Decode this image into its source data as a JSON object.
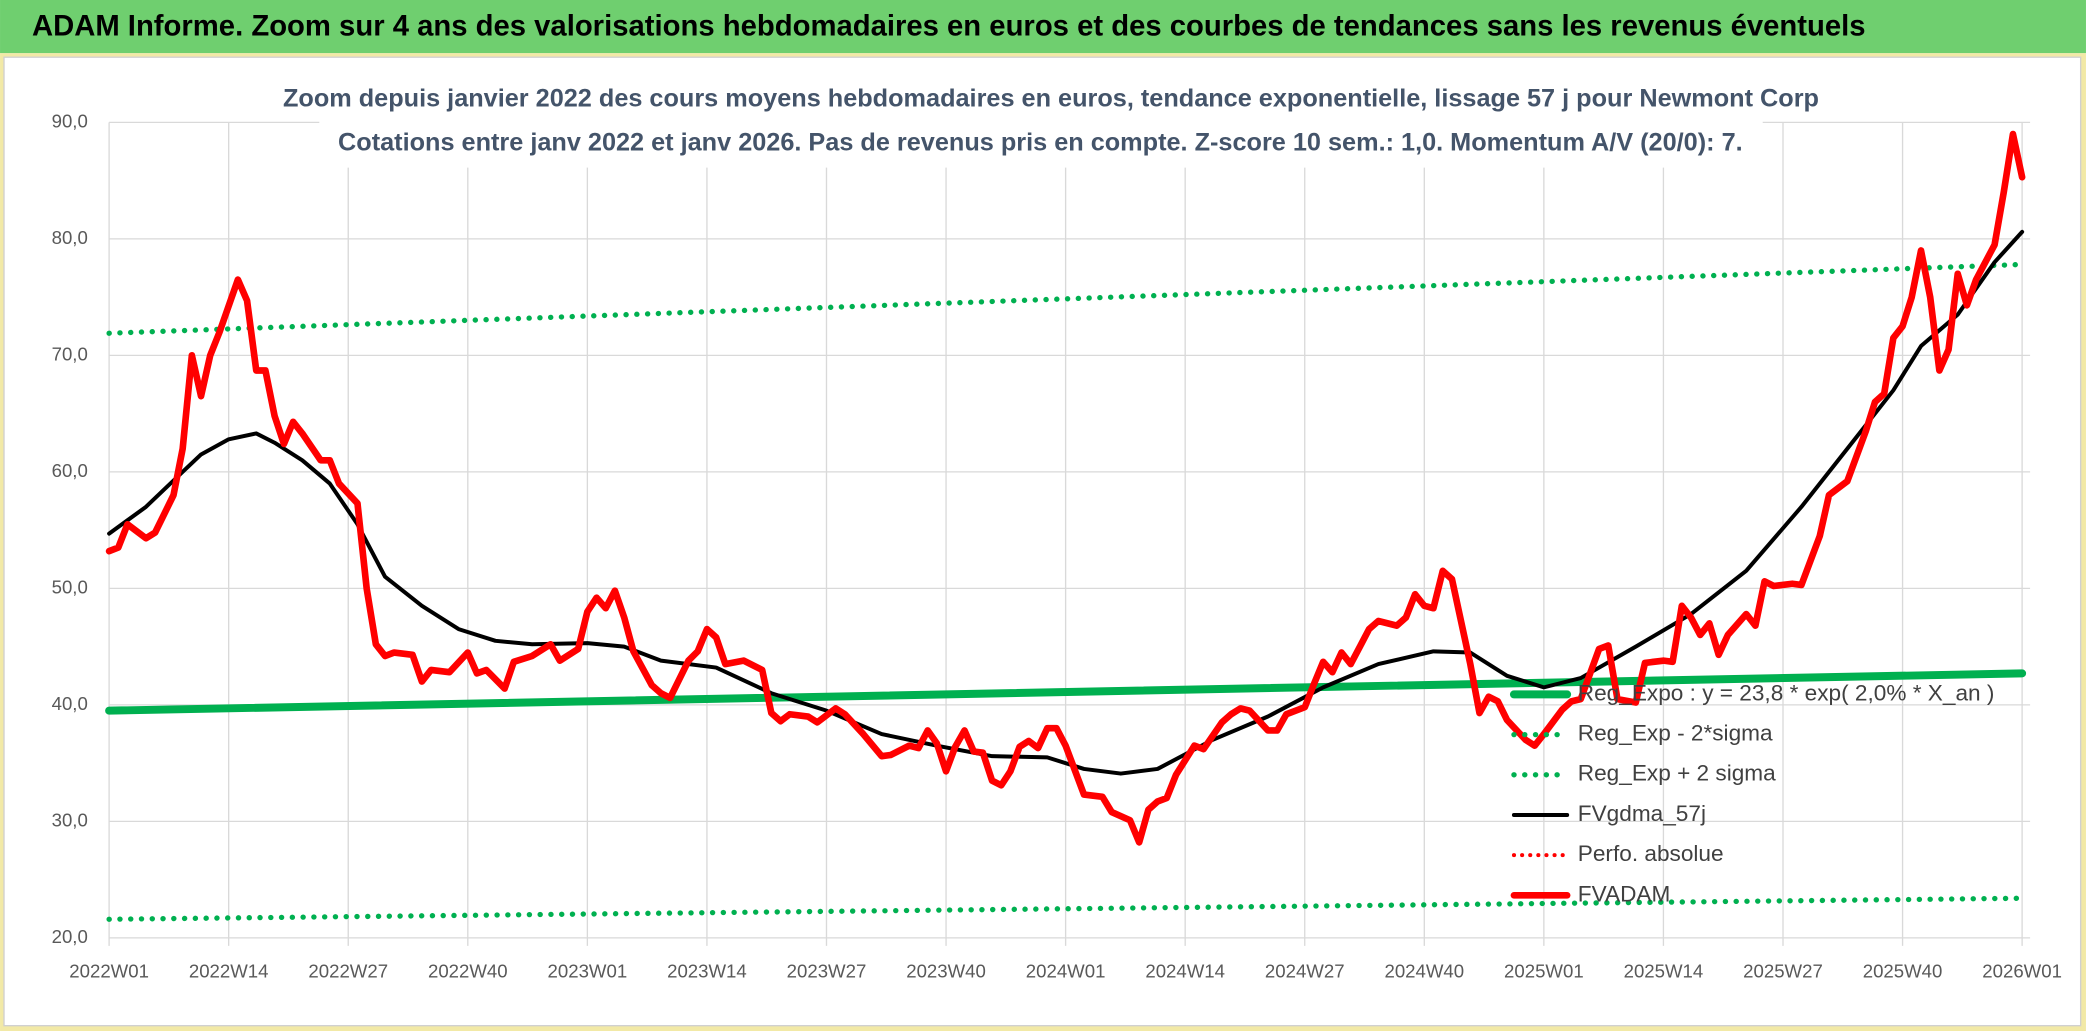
{
  "header": {
    "title": "ADAM Informe. Zoom sur 4 ans des valorisations hebdomadaires en euros et des courbes de tendances sans les revenus éventuels"
  },
  "chart_data": {
    "type": "line",
    "title": "Zoom depuis janvier 2022 des cours moyens hebdomadaires en euros, tendance exponentielle, lissage 57 j pour Newmont Corp",
    "subtitle": "Cotations entre janv 2022 et janv 2026. Pas de revenus pris en compte. Z-score 10 sem.: 1,0. Momentum A/V (20/0): 7.",
    "xlim": [
      0,
      208
    ],
    "xticks": [
      {
        "value": 0,
        "label": "2022W01"
      },
      {
        "value": 13,
        "label": "2022W14"
      },
      {
        "value": 26,
        "label": "2022W27"
      },
      {
        "value": 39,
        "label": "2022W40"
      },
      {
        "value": 52,
        "label": "2023W01"
      },
      {
        "value": 65,
        "label": "2023W14"
      },
      {
        "value": 78,
        "label": "2023W27"
      },
      {
        "value": 91,
        "label": "2023W40"
      },
      {
        "value": 104,
        "label": "2024W01"
      },
      {
        "value": 117,
        "label": "2024W14"
      },
      {
        "value": 130,
        "label": "2024W27"
      },
      {
        "value": 143,
        "label": "2024W40"
      },
      {
        "value": 156,
        "label": "2025W01"
      },
      {
        "value": 169,
        "label": "2025W14"
      },
      {
        "value": 182,
        "label": "2025W27"
      },
      {
        "value": 195,
        "label": "2025W40"
      },
      {
        "value": 208,
        "label": "2026W01"
      }
    ],
    "ylim": [
      20,
      90
    ],
    "yticks": [
      {
        "value": 20,
        "label": "20,0"
      },
      {
        "value": 30,
        "label": "30,0"
      },
      {
        "value": 40,
        "label": "40,0"
      },
      {
        "value": 50,
        "label": "50,0"
      },
      {
        "value": 60,
        "label": "60,0"
      },
      {
        "value": 70,
        "label": "70,0"
      },
      {
        "value": 80,
        "label": "80,0"
      },
      {
        "value": 90,
        "label": "90,0"
      }
    ],
    "grid": true,
    "legend": "lower right",
    "series": [
      {
        "name": "Reg_Expo : y = 23,8 * exp( 2,0% *  X_an )",
        "color": "#00b050",
        "style": "solid",
        "width": 6,
        "x": [
          0,
          208
        ],
        "values": [
          39.5,
          42.7
        ]
      },
      {
        "name": "Reg_Exp - 2*sigma",
        "color": "#00b050",
        "style": "dotted",
        "width": 4,
        "x": [
          0,
          208
        ],
        "values": [
          21.6,
          23.4
        ]
      },
      {
        "name": "Reg_Exp + 2 sigma",
        "color": "#00b050",
        "style": "dotted",
        "width": 4,
        "x": [
          0,
          208
        ],
        "values": [
          71.9,
          77.8
        ]
      },
      {
        "name": "FVgdma_57j",
        "color": "#000000",
        "style": "solid",
        "width": 3,
        "x": [
          0,
          4,
          8,
          10,
          13,
          16,
          18,
          21,
          24,
          27,
          30,
          34,
          38,
          42,
          46,
          52,
          56,
          60,
          66,
          72,
          78,
          84,
          90,
          96,
          102,
          106,
          110,
          114,
          120,
          126,
          132,
          138,
          144,
          148,
          152,
          156,
          160,
          166,
          172,
          178,
          184,
          190,
          194,
          197,
          201,
          205,
          208
        ],
        "values": [
          54.7,
          57,
          60,
          61.5,
          62.8,
          63.3,
          62.5,
          61,
          59,
          55.5,
          51,
          48.5,
          46.5,
          45.5,
          45.2,
          45.3,
          45,
          43.8,
          43.2,
          41,
          39.5,
          37.5,
          36.5,
          35.6,
          35.5,
          34.5,
          34.1,
          34.5,
          37,
          39,
          41.5,
          43.5,
          44.6,
          44.5,
          42.5,
          41.5,
          42.3,
          45,
          47.8,
          51.5,
          57,
          63,
          67,
          70.8,
          73.5,
          78,
          80.6
        ]
      },
      {
        "name": "Perfo. absolue",
        "color": "#ff0000",
        "style": "dotted",
        "width": 3,
        "x": [],
        "values": []
      },
      {
        "name": "FVADAM",
        "color": "#ff0000",
        "style": "solid",
        "width": 5,
        "x": [
          0,
          1,
          2,
          4,
          5,
          7,
          8,
          9,
          10,
          11,
          12,
          14,
          15,
          16,
          17,
          18,
          19,
          20,
          21,
          23,
          24,
          25,
          27,
          28,
          29,
          30,
          31,
          33,
          34,
          35,
          37,
          39,
          40,
          41,
          43,
          44,
          46,
          48,
          49,
          51,
          52,
          53,
          54,
          55,
          56,
          57,
          59,
          60,
          61,
          63,
          64,
          65,
          66,
          67,
          69,
          71,
          72,
          73,
          74,
          76,
          77,
          79,
          80,
          82,
          84,
          85,
          87,
          88,
          89,
          90,
          91,
          92,
          93,
          94,
          95,
          96,
          97,
          98,
          99,
          100,
          101,
          102,
          103,
          104,
          106,
          108,
          109,
          111,
          112,
          113,
          114,
          115,
          116,
          118,
          119,
          121,
          122,
          123,
          124,
          126,
          127,
          128,
          130,
          131,
          132,
          133,
          134,
          135,
          136,
          137,
          138,
          140,
          141,
          142,
          143,
          144,
          145,
          146,
          148,
          149,
          150,
          151,
          152,
          154,
          155,
          156,
          158,
          159,
          160,
          162,
          163,
          164,
          166,
          167,
          169,
          170,
          171,
          172,
          173,
          174,
          175,
          176,
          178,
          179,
          180,
          181,
          183,
          184,
          186,
          187,
          189,
          191,
          192,
          193,
          194,
          195,
          196,
          197,
          198,
          199,
          200,
          201,
          202,
          203,
          205,
          206,
          207,
          208
        ],
        "values": [
          53.2,
          53.5,
          55.5,
          54.3,
          54.8,
          58,
          62,
          70,
          66.5,
          70,
          72,
          76.5,
          74.7,
          68.7,
          68.7,
          64.8,
          62.4,
          64.3,
          63.3,
          61,
          61,
          59,
          57.3,
          50,
          45.2,
          44.2,
          44.5,
          44.3,
          42,
          43,
          42.8,
          44.5,
          42.7,
          43,
          41.4,
          43.7,
          44.2,
          45.2,
          43.8,
          44.8,
          48,
          49.2,
          48.3,
          49.8,
          47.5,
          44.6,
          41.7,
          41,
          40.6,
          43.8,
          44.6,
          46.5,
          45.8,
          43.5,
          43.8,
          43,
          39.3,
          38.6,
          39.2,
          39,
          38.5,
          39.7,
          39.2,
          37.5,
          35.6,
          35.7,
          36.5,
          36.3,
          37.8,
          36.7,
          34.3,
          36.4,
          37.8,
          36,
          35.9,
          33.5,
          33.1,
          34.3,
          36.4,
          36.9,
          36.3,
          38,
          38,
          36.5,
          32.3,
          32.1,
          30.8,
          30.1,
          28.2,
          31,
          31.7,
          32,
          34,
          36.5,
          36.2,
          38.5,
          39.2,
          39.7,
          39.5,
          37.8,
          37.8,
          39.2,
          39.8,
          41.8,
          43.7,
          42.8,
          44.5,
          43.5,
          45,
          46.5,
          47.2,
          46.8,
          47.5,
          49.5,
          48.5,
          48.3,
          51.5,
          50.8,
          43.5,
          39.3,
          40.7,
          40.3,
          38.7,
          37,
          36.5,
          37.5,
          39.6,
          40.3,
          40.5,
          44.8,
          45.1,
          40.5,
          40.2,
          43.6,
          43.8,
          43.7,
          48.5,
          47.5,
          46,
          47,
          44.3,
          46,
          47.8,
          46.8,
          50.6,
          50.2,
          50.4,
          50.3,
          54.5,
          58,
          59.2,
          63.5,
          66,
          66.7,
          71.5,
          72.5,
          75,
          79,
          75,
          68.7,
          70.5,
          77,
          74.3,
          76.5,
          79.5,
          84,
          89,
          85.3
        ]
      }
    ]
  }
}
